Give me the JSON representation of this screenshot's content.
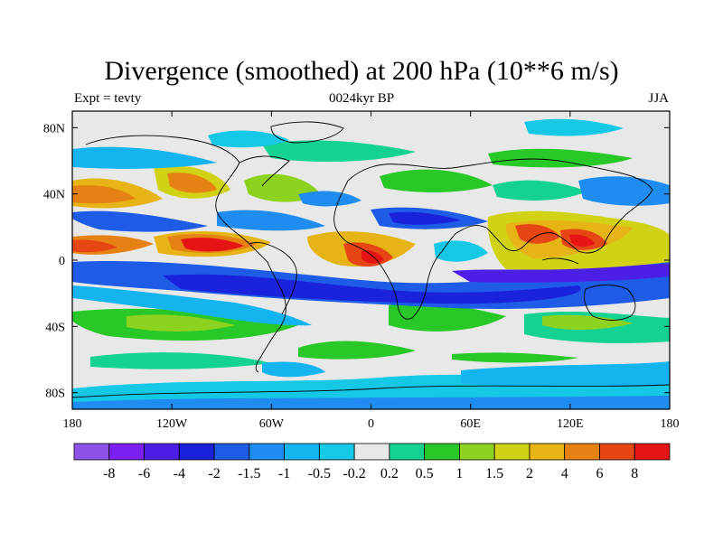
{
  "title": "Divergence (smoothed) at 200 hPa (10**6 m/s)",
  "left_label": "Expt = tevty",
  "center_label": "0024kyr BP",
  "right_label": "JJA",
  "lat_ticks": [
    {
      "value": 80,
      "label": "80N"
    },
    {
      "value": 40,
      "label": "40N"
    },
    {
      "value": 0,
      "label": "0"
    },
    {
      "value": -40,
      "label": "40S"
    },
    {
      "value": -80,
      "label": "80S"
    }
  ],
  "lon_ticks": [
    {
      "value": -180,
      "label": "180"
    },
    {
      "value": -120,
      "label": "120W"
    },
    {
      "value": -60,
      "label": "60W"
    },
    {
      "value": 0,
      "label": "0"
    },
    {
      "value": 60,
      "label": "60E"
    },
    {
      "value": 120,
      "label": "120E"
    },
    {
      "value": 180,
      "label": "180"
    }
  ],
  "colorbar": {
    "colors": [
      "#8e52e6",
      "#7a20f0",
      "#4d1ee6",
      "#1a22dc",
      "#1e5ce8",
      "#1e8cf0",
      "#14b4f0",
      "#14c8e6",
      "#e8e8e8",
      "#14d290",
      "#28c828",
      "#8cd21e",
      "#d2d214",
      "#e6b414",
      "#e68214",
      "#e64614",
      "#e61414"
    ],
    "labels": [
      "-8",
      "-6",
      "-4",
      "-2",
      "-1.5",
      "-1",
      "-0.5",
      "-0.2",
      "0.2",
      "0.5",
      "1",
      "1.5",
      "2",
      "4",
      "6",
      "8"
    ]
  }
}
